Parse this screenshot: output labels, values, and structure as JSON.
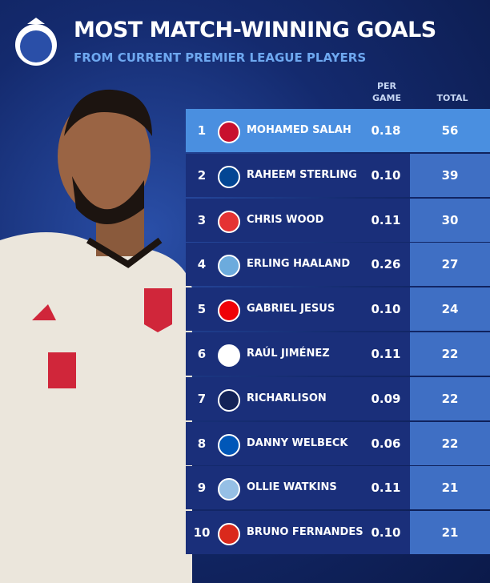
{
  "header": {
    "title": "MOST MATCH-WINNING GOALS",
    "subtitle": "FROM CURRENT PREMIER LEAGUE PLAYERS"
  },
  "table": {
    "columns": [
      "PER GAME",
      "TOTAL"
    ],
    "rows": [
      [
        1,
        "MOHAMED SALAH",
        "0.18",
        56
      ],
      [
        2,
        "RAHEEM STERLING",
        "0.10",
        39
      ],
      [
        3,
        "CHRIS WOOD",
        "0.11",
        30
      ],
      [
        4,
        "ERLING HAALAND",
        "0.26",
        27
      ],
      [
        5,
        "GABRIEL JESUS",
        "0.10",
        24
      ],
      [
        6,
        "RAÚL JIMÉNEZ",
        "0.11",
        22
      ],
      [
        7,
        "RICHARLISON",
        "0.09",
        22
      ],
      [
        8,
        "DANNY WELBECK",
        "0.06",
        22
      ],
      [
        9,
        "OLLIE WATKINS",
        "0.11",
        21
      ],
      [
        10,
        "BRUNO FERNANDES",
        "0.10",
        21
      ]
    ]
  }
}
